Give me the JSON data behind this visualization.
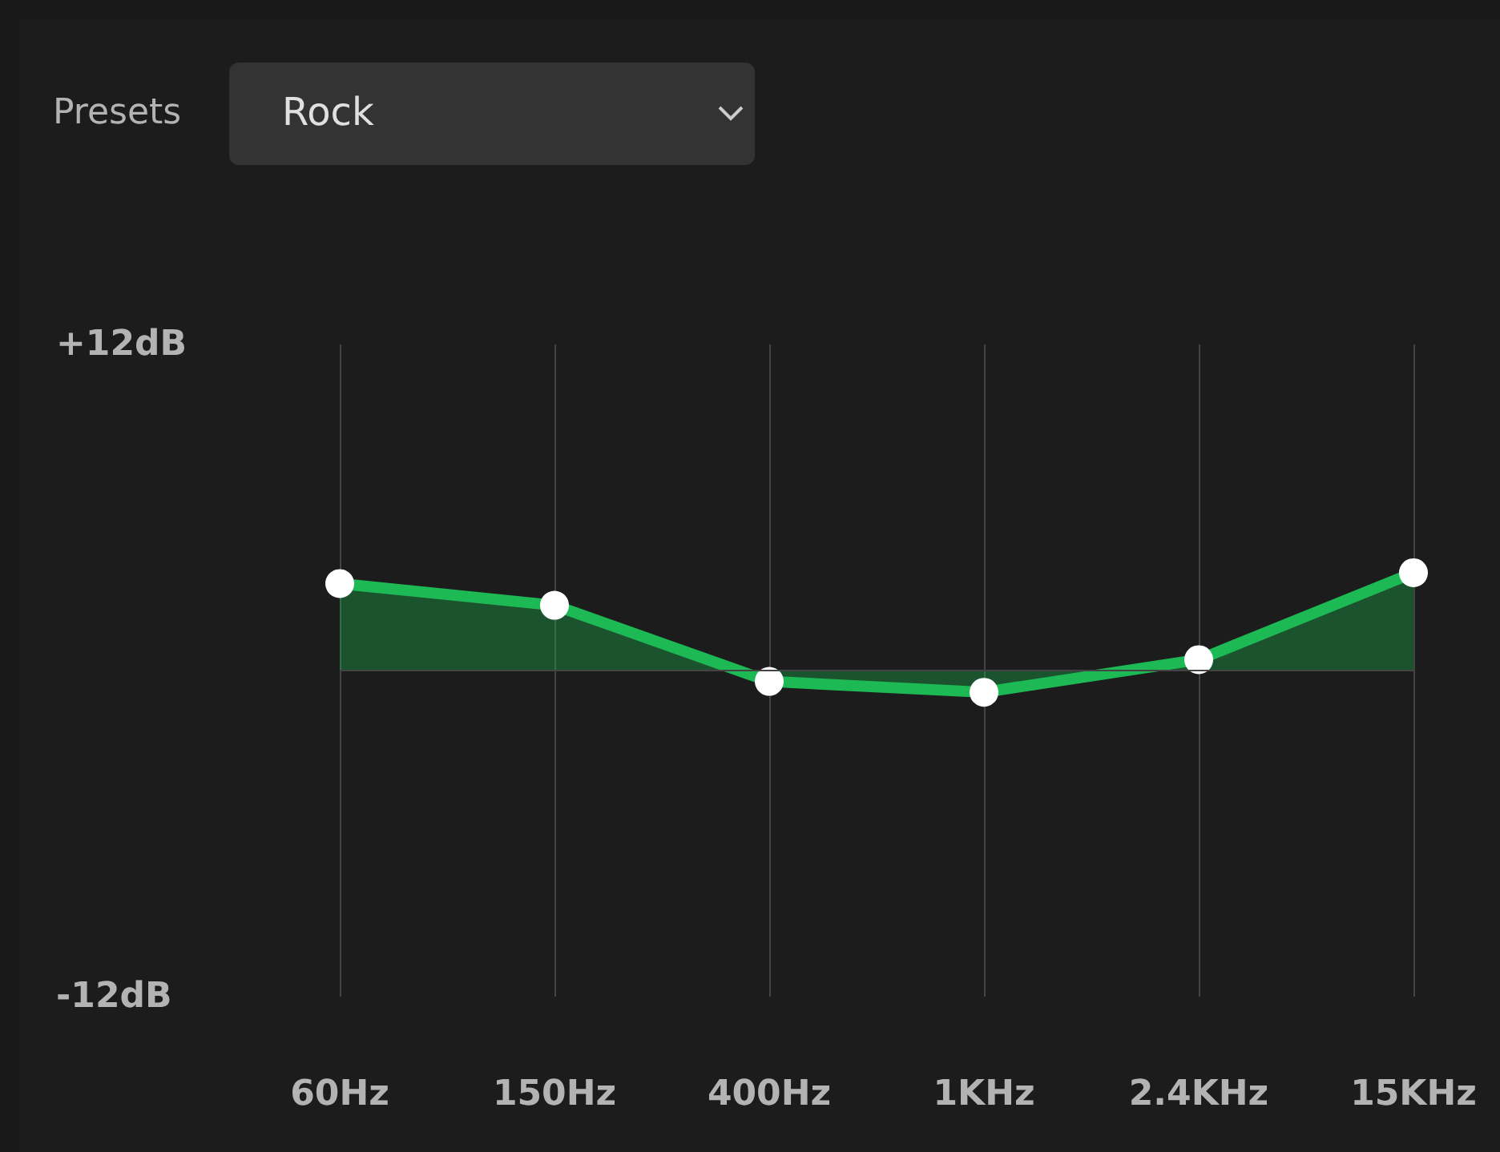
{
  "chart_data": {
    "type": "area",
    "categories": [
      "60Hz",
      "150Hz",
      "400Hz",
      "1KHz",
      "2.4KHz",
      "15KHz"
    ],
    "series": [
      {
        "color": "#1db954",
        "values": [
          3.2,
          2.4,
          -0.4,
          -0.8,
          0.4,
          3.6
        ]
      }
    ],
    "ylim": [
      -12,
      12
    ],
    "yticks": [
      {
        "value": 12,
        "label": "+12dB"
      },
      {
        "value": -12,
        "label": "-12dB"
      }
    ],
    "grid": "x",
    "marker": "circle",
    "ref_lines": [
      {
        "axis": "y",
        "value": 0,
        "color": "#444444"
      }
    ],
    "annotations": [
      "Presets",
      "Rock"
    ]
  }
}
